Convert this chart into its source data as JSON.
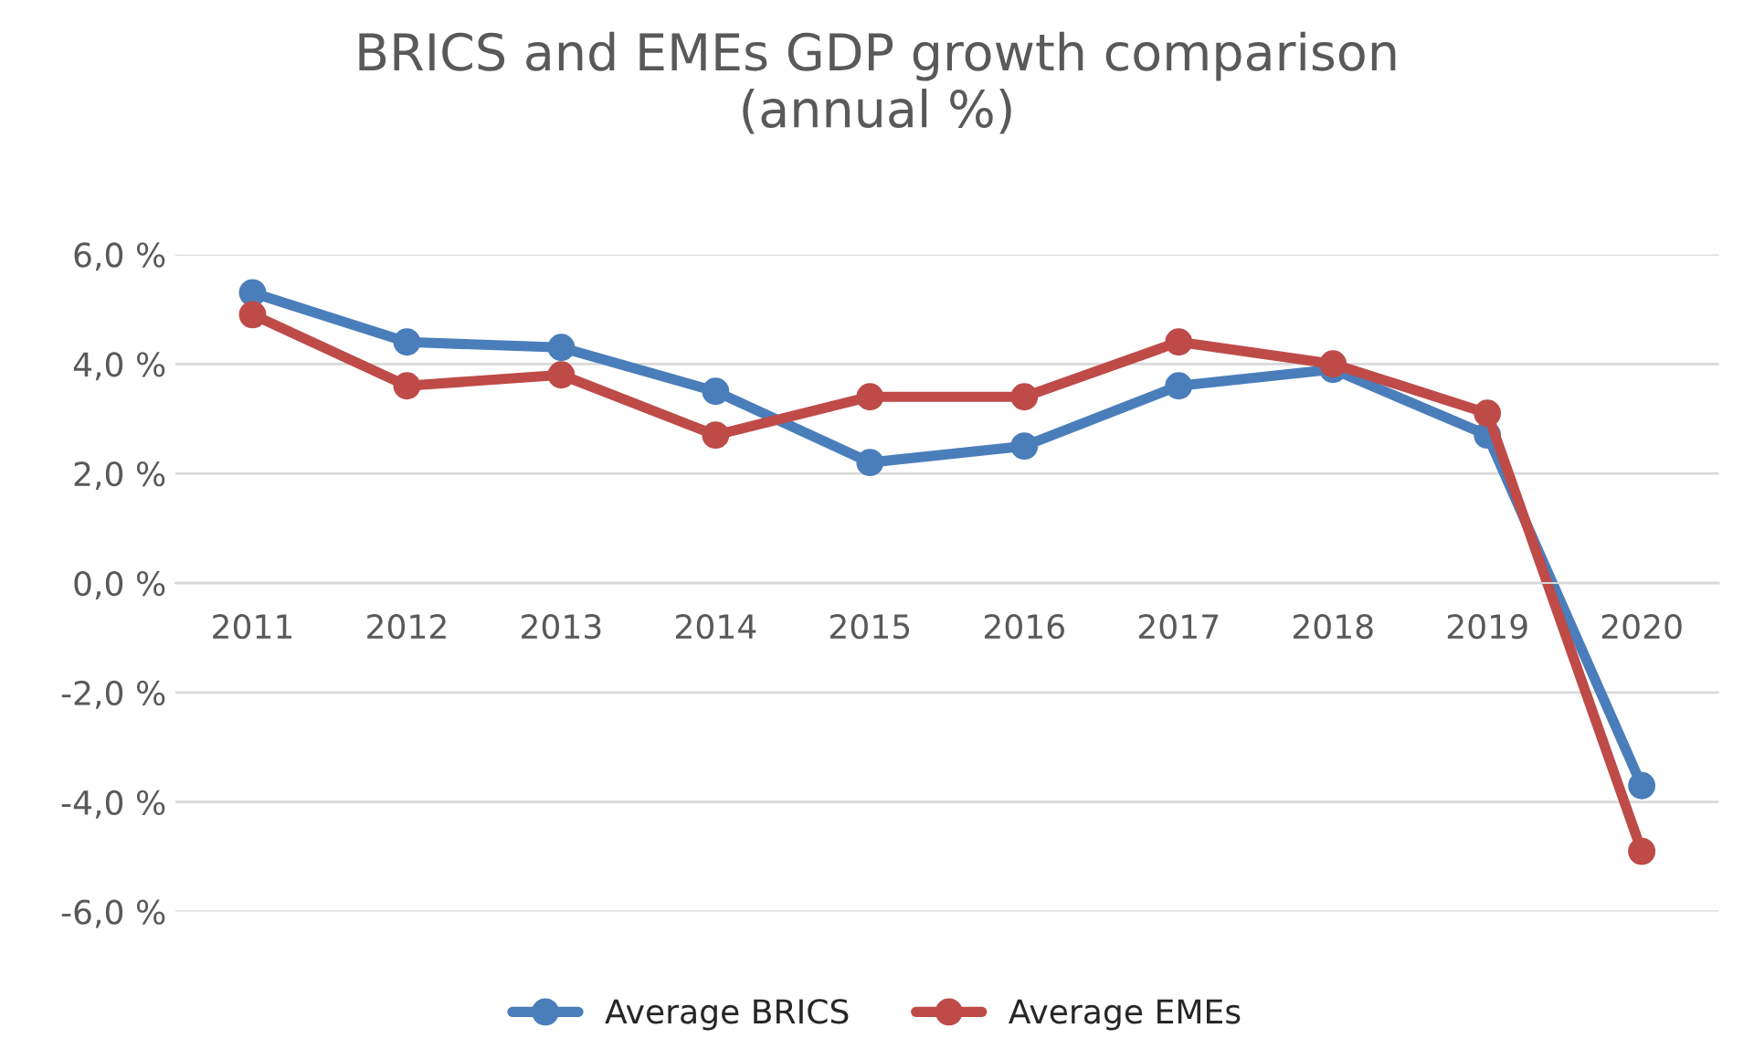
{
  "chart_data": {
    "type": "line",
    "title": "BRICS and EMEs GDP growth comparison\n(annual %)",
    "categories": [
      "2011",
      "2012",
      "2013",
      "2014",
      "2015",
      "2016",
      "2017",
      "2018",
      "2019",
      "2020"
    ],
    "series": [
      {
        "name": "Average BRICS",
        "color": "#4a7ebb",
        "values": [
          5.3,
          4.4,
          4.3,
          3.5,
          2.2,
          2.5,
          3.6,
          3.9,
          2.7,
          -3.7
        ]
      },
      {
        "name": "Average EMEs",
        "color": "#be4b48",
        "values": [
          4.9,
          3.6,
          3.8,
          2.7,
          3.4,
          3.4,
          4.4,
          4.0,
          3.1,
          -4.9
        ]
      }
    ],
    "ylim": [
      -6,
      6
    ],
    "yticks": [
      {
        "value": -6,
        "label": "-6,0 %"
      },
      {
        "value": -4,
        "label": "-4,0 %"
      },
      {
        "value": -2,
        "label": "-2,0 %"
      },
      {
        "value": 0,
        "label": "0,0 %"
      },
      {
        "value": 2,
        "label": "2,0 %"
      },
      {
        "value": 4,
        "label": "4,0 %"
      },
      {
        "value": 6,
        "label": "6,0 %"
      }
    ],
    "grid": "y",
    "legend": "bottom",
    "marker": "circle",
    "line_style": "solid"
  }
}
